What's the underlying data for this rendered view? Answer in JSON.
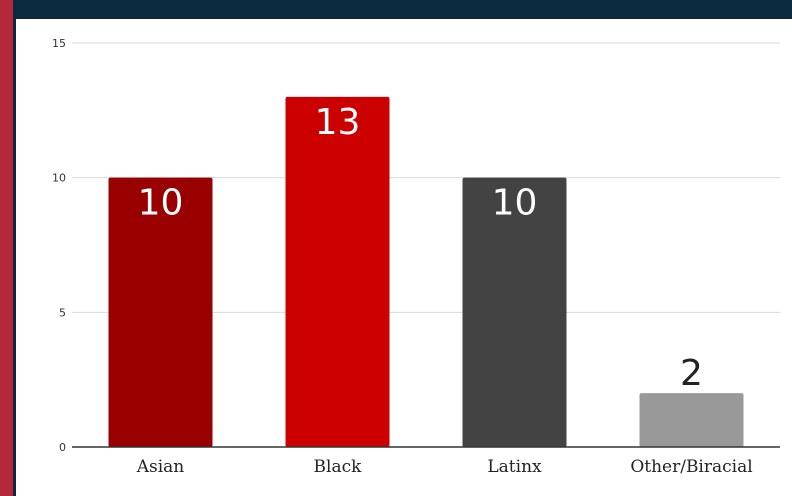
{
  "chart_data": {
    "type": "bar",
    "categories": [
      "Asian",
      "Black",
      "Latinx",
      "Other/Biracial"
    ],
    "values": [
      10,
      13,
      10,
      2
    ],
    "colors": [
      "#990000",
      "#cc0000",
      "#434343",
      "#999999"
    ],
    "data_label_colors": [
      "#ffffff",
      "#ffffff",
      "#ffffff",
      "#222222"
    ],
    "yticks": [
      0,
      5,
      10,
      15
    ],
    "ylim": [
      0,
      15
    ],
    "grid": true,
    "title": "",
    "xlabel": "",
    "ylabel": ""
  },
  "theme": {
    "background": "#0b2a40",
    "accent": "#b5283c",
    "panel": "#ffffff"
  }
}
